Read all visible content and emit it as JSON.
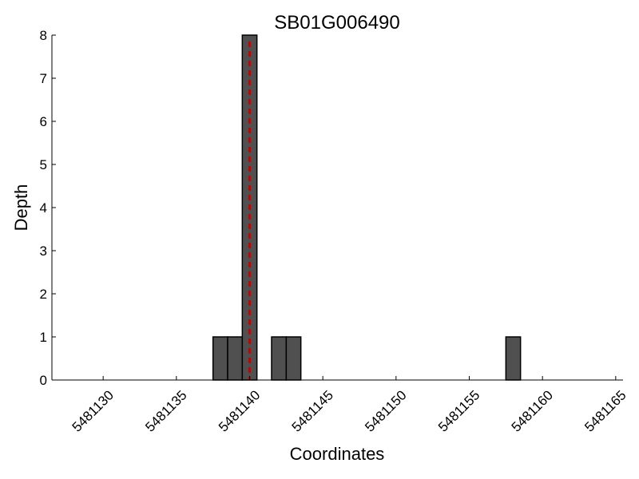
{
  "chart_data": {
    "type": "bar",
    "title": "SB01G006490",
    "xlabel": "Coordinates",
    "ylabel": "Depth",
    "xlim": [
      5481127,
      5481166
    ],
    "ylim": [
      0,
      8
    ],
    "x_ticks": [
      5481130,
      5481135,
      5481140,
      5481145,
      5481150,
      5481155,
      5481160,
      5481165
    ],
    "y_ticks": [
      0,
      1,
      2,
      3,
      4,
      5,
      6,
      7,
      8
    ],
    "x": [
      5481138,
      5481139,
      5481140,
      5481142,
      5481143,
      5481158
    ],
    "values": [
      1,
      1,
      8,
      1,
      1,
      1
    ],
    "marker_line": {
      "x": 5481140,
      "color": "#cc0000",
      "style": "dashed"
    },
    "bar_color": "#505050",
    "bar_edge_color": "#000000",
    "grid": false,
    "legend": "none"
  }
}
